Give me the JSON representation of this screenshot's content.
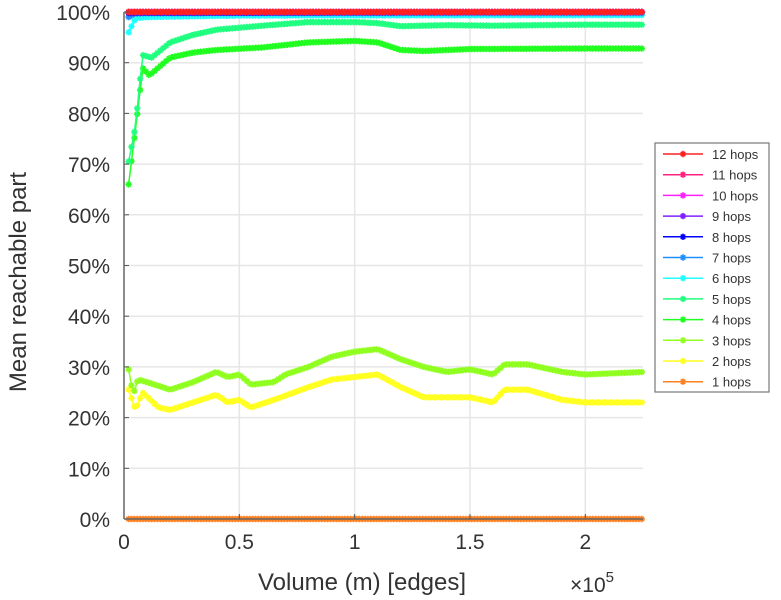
{
  "chart_data": {
    "type": "line",
    "xlabel": "Volume (m) [edges]",
    "x_multiplier": "×10",
    "x_multiplier_exp": "5",
    "ylabel": "Mean reachable part",
    "xlim": [
      0,
      2.25
    ],
    "ylim": [
      0,
      100
    ],
    "xticks": [
      {
        "v": 0,
        "label": "0"
      },
      {
        "v": 0.5,
        "label": "0.5"
      },
      {
        "v": 1,
        "label": "1"
      },
      {
        "v": 1.5,
        "label": "1.5"
      },
      {
        "v": 2,
        "label": "2"
      }
    ],
    "yticks": [
      {
        "v": 0,
        "label": "0%"
      },
      {
        "v": 10,
        "label": "10%"
      },
      {
        "v": 20,
        "label": "20%"
      },
      {
        "v": 30,
        "label": "30%"
      },
      {
        "v": 40,
        "label": "40%"
      },
      {
        "v": 50,
        "label": "50%"
      },
      {
        "v": 60,
        "label": "60%"
      },
      {
        "v": 70,
        "label": "70%"
      },
      {
        "v": 80,
        "label": "80%"
      },
      {
        "v": 90,
        "label": "90%"
      },
      {
        "v": 100,
        "label": "100%"
      }
    ],
    "grid": true,
    "legend_position": "right",
    "series": [
      {
        "name": "12 hops",
        "color": "#ff2020",
        "x": [
          0.02,
          2.25
        ],
        "y": [
          100,
          100
        ]
      },
      {
        "name": "11 hops",
        "color": "#ff2080",
        "x": [
          0.02,
          2.25
        ],
        "y": [
          100,
          100
        ]
      },
      {
        "name": "10 hops",
        "color": "#ff20ff",
        "x": [
          0.02,
          2.25
        ],
        "y": [
          100,
          100
        ]
      },
      {
        "name": "9 hops",
        "color": "#8020ff",
        "x": [
          0.02,
          2.25
        ],
        "y": [
          100,
          100
        ]
      },
      {
        "name": "8 hops",
        "color": "#0000ff",
        "x": [
          0.02,
          2.25
        ],
        "y": [
          99.8,
          100
        ]
      },
      {
        "name": "7 hops",
        "color": "#2090ff",
        "x": [
          0.02,
          0.05,
          2.25
        ],
        "y": [
          99,
          99.8,
          99.8
        ]
      },
      {
        "name": "6 hops",
        "color": "#20ffff",
        "x": [
          0.02,
          0.05,
          0.1,
          0.5,
          2.25
        ],
        "y": [
          96,
          98.8,
          99,
          99.3,
          99.4
        ]
      },
      {
        "name": "5 hops",
        "color": "#20ff80",
        "x": [
          0.02,
          0.05,
          0.08,
          0.12,
          0.2,
          0.3,
          0.4,
          0.6,
          0.8,
          1.0,
          1.1,
          1.2,
          1.4,
          1.6,
          2.0,
          2.25
        ],
        "y": [
          70.5,
          77.5,
          91.5,
          91,
          94,
          95.5,
          96.5,
          97.3,
          98,
          98,
          97.8,
          97.2,
          97.4,
          97.3,
          97.5,
          97.5
        ]
      },
      {
        "name": "4 hops",
        "color": "#20ff20",
        "x": [
          0.02,
          0.05,
          0.07,
          0.08,
          0.11,
          0.2,
          0.3,
          0.4,
          0.6,
          0.8,
          1.0,
          1.1,
          1.2,
          1.3,
          1.5,
          2.0,
          2.25
        ],
        "y": [
          66,
          77,
          84.6,
          89,
          87.5,
          91,
          92,
          92.5,
          93,
          94,
          94.3,
          94,
          92.5,
          92.3,
          92.7,
          92.8,
          92.8
        ]
      },
      {
        "name": "3 hops",
        "color": "#90ff20",
        "x": [
          0.02,
          0.04,
          0.06,
          0.1,
          0.2,
          0.3,
          0.4,
          0.45,
          0.5,
          0.55,
          0.65,
          0.7,
          0.8,
          0.9,
          1.0,
          1.1,
          1.2,
          1.3,
          1.4,
          1.5,
          1.6,
          1.65,
          1.75,
          1.9,
          2.0,
          2.25
        ],
        "y": [
          29.5,
          24.5,
          27.5,
          27,
          25.5,
          27,
          29,
          28,
          28.5,
          26.5,
          27,
          28.5,
          30,
          32,
          33,
          33.5,
          31.5,
          30,
          29,
          29.5,
          28.5,
          30.5,
          30.5,
          29,
          28.5,
          29
        ]
      },
      {
        "name": "2 hops",
        "color": "#ffff20",
        "x": [
          0.02,
          0.05,
          0.08,
          0.15,
          0.2,
          0.3,
          0.4,
          0.45,
          0.5,
          0.55,
          0.65,
          0.8,
          0.9,
          1.0,
          1.1,
          1.2,
          1.3,
          1.4,
          1.5,
          1.6,
          1.65,
          1.75,
          1.9,
          2.0,
          2.25
        ],
        "y": [
          25.5,
          21.5,
          25,
          22,
          21.5,
          23,
          24.5,
          23,
          23.5,
          22,
          23.5,
          26,
          27.5,
          28,
          28.5,
          26,
          24,
          24,
          24,
          23,
          25.5,
          25.5,
          23.5,
          23,
          23
        ]
      },
      {
        "name": "1 hops",
        "color": "#ff8020",
        "x": [
          0.02,
          2.25
        ],
        "y": [
          0,
          0
        ]
      }
    ]
  }
}
